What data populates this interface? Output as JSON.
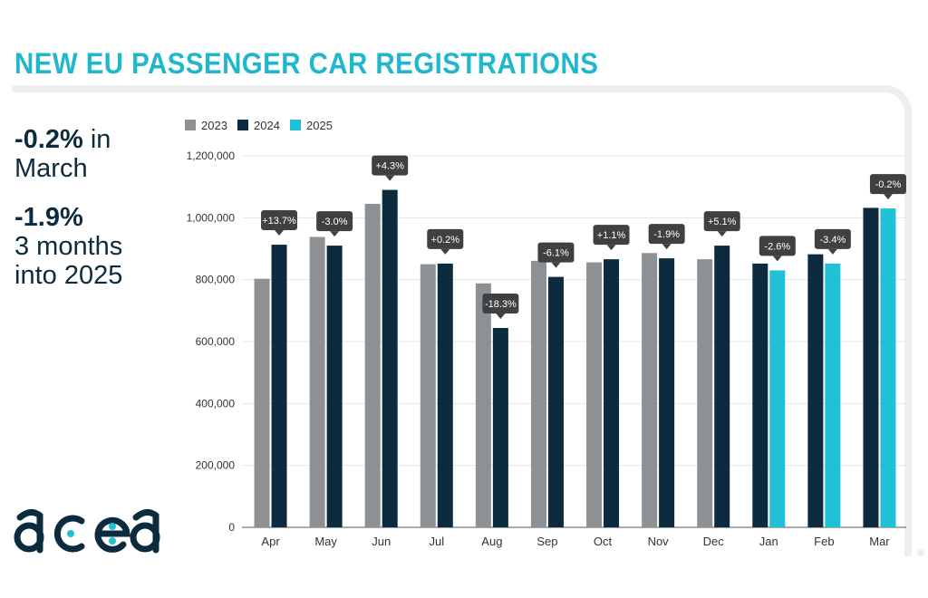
{
  "title": "NEW EU PASSENGER CAR REGISTRATIONS",
  "stats": {
    "march_value": "-0.2%",
    "march_label": " in March",
    "ytd_value": "-1.9%",
    "ytd_line1": "3 months",
    "ytd_line2": "into 2025"
  },
  "logo_text": "acea",
  "colors": {
    "y2023": "#8e9193",
    "y2024": "#0d2b3e",
    "y2025": "#20c0d6",
    "title": "#1fb7cc",
    "annotation_bg": "#3f4042",
    "grid": "#e3e5e7"
  },
  "chart_data": {
    "type": "bar",
    "title": "",
    "xlabel": "",
    "ylabel": "",
    "ylim": [
      0,
      1200000
    ],
    "yticks": [
      0,
      200000,
      400000,
      600000,
      800000,
      1000000,
      1200000
    ],
    "ytick_labels": [
      "0",
      "200,000",
      "400,000",
      "600,000",
      "800,000",
      "1,000,000",
      "1,200,000"
    ],
    "grid": true,
    "legend_position": "top-left",
    "categories": [
      "Apr",
      "May",
      "Jun",
      "Jul",
      "Aug",
      "Sep",
      "Oct",
      "Nov",
      "Dec",
      "Jan",
      "Feb",
      "Mar"
    ],
    "series": [
      {
        "name": "2023",
        "color": "#8e9193",
        "values": [
          803000,
          938000,
          1045000,
          850000,
          788000,
          861000,
          856000,
          886000,
          866000,
          null,
          null,
          null
        ]
      },
      {
        "name": "2024",
        "color": "#0d2b3e",
        "values": [
          913000,
          910000,
          1090000,
          852000,
          644000,
          809000,
          866000,
          869000,
          910000,
          852000,
          882000,
          1032000
        ]
      },
      {
        "name": "2025",
        "color": "#20c0d6",
        "values": [
          null,
          null,
          null,
          null,
          null,
          null,
          null,
          null,
          null,
          830000,
          852000,
          1030000
        ]
      }
    ],
    "annotations": [
      "+13.7%",
      "-3.0%",
      "+4.3%",
      "+0.2%",
      "-18.3%",
      "-6.1%",
      "+1.1%",
      "-1.9%",
      "+5.1%",
      "-2.6%",
      "-3.4%",
      "-0.2%"
    ]
  }
}
